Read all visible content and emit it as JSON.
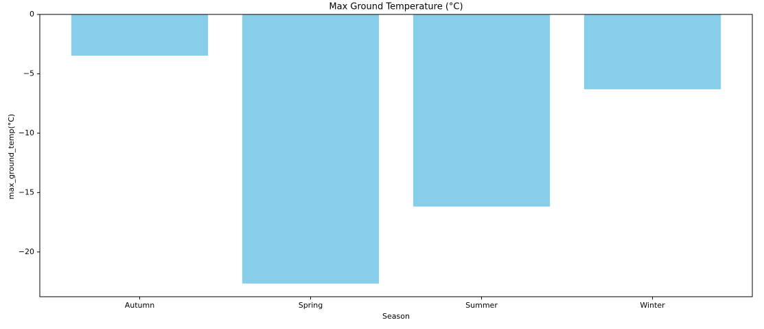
{
  "chart_data": {
    "type": "bar",
    "title": "Max Ground Temperature (°C)",
    "x_label": "Season",
    "y_label": "max_ground_temp(°C)",
    "categories": [
      "Autumn",
      "Spring",
      "Summer",
      "Winter"
    ],
    "values": [
      -3.47,
      -22.66,
      -16.18,
      -6.3
    ],
    "color": "#87ceeb",
    "ylim": [
      -23.77,
      0
    ],
    "yticks": [
      {
        "value": -20,
        "label": "−20"
      },
      {
        "value": -15,
        "label": "−15"
      },
      {
        "value": -10,
        "label": "−10"
      },
      {
        "value": -5,
        "label": "−5"
      },
      0
    ],
    "grid": false
  }
}
